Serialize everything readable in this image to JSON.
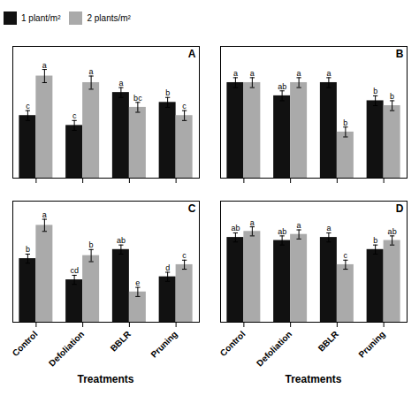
{
  "chart_data": [
    {
      "type": "bar",
      "title": "A",
      "categories": [
        "Control",
        "Defoliation",
        "BBLR",
        "Pruning"
      ],
      "series": [
        {
          "name": "1 plant/m²",
          "color": "#111111",
          "values": [
            0.38,
            0.32,
            0.52,
            0.46
          ],
          "errors": [
            0.03,
            0.03,
            0.03,
            0.03
          ],
          "annotations": [
            "c",
            "c",
            "a",
            "b"
          ]
        },
        {
          "name": "2 plants/m²",
          "color": "#aaaaaa",
          "values": [
            0.62,
            0.58,
            0.43,
            0.38
          ],
          "errors": [
            0.04,
            0.04,
            0.03,
            0.03
          ],
          "annotations": [
            "a",
            "a",
            "bc",
            "c"
          ]
        }
      ],
      "ylim": [
        0,
        0.8
      ],
      "yticks": [],
      "grid": false,
      "tick_labels": false,
      "legend": "upper left"
    },
    {
      "type": "bar",
      "title": "B",
      "categories": [
        "Control",
        "Defoliation",
        "BBLR",
        "Pruning"
      ],
      "series": [
        {
          "name": "1 plant/m²",
          "color": "#111111",
          "values": [
            0.58,
            0.5,
            0.58,
            0.47
          ],
          "errors": [
            0.03,
            0.03,
            0.03,
            0.03
          ],
          "annotations": [
            "a",
            "ab",
            "a",
            "b"
          ]
        },
        {
          "name": "2 plants/m²",
          "color": "#aaaaaa",
          "values": [
            0.58,
            0.58,
            0.28,
            0.44
          ],
          "errors": [
            0.03,
            0.03,
            0.03,
            0.03
          ],
          "annotations": [
            "a",
            "a",
            "b",
            "b"
          ]
        }
      ],
      "ylim": [
        0,
        0.8
      ],
      "yticks": [],
      "grid": false,
      "tick_labels": false
    },
    {
      "type": "bar",
      "title": "C",
      "xlabel": "Treatments",
      "categories": [
        "Control",
        "Defoliation",
        "BBLR",
        "Pruning"
      ],
      "series": [
        {
          "name": "1 plant/m²",
          "color": "#111111",
          "values": [
            0.42,
            0.28,
            0.48,
            0.3
          ],
          "errors": [
            0.03,
            0.03,
            0.03,
            0.03
          ],
          "annotations": [
            "b",
            "cd",
            "ab",
            "d"
          ]
        },
        {
          "name": "2 plants/m²",
          "color": "#aaaaaa",
          "values": [
            0.64,
            0.44,
            0.2,
            0.38
          ],
          "errors": [
            0.04,
            0.04,
            0.03,
            0.03
          ],
          "annotations": [
            "a",
            "b",
            "e",
            "c"
          ]
        }
      ],
      "ylim": [
        0,
        0.8
      ],
      "yticks": [],
      "grid": false,
      "tick_labels": "x"
    },
    {
      "type": "bar",
      "title": "D",
      "xlabel": "Treatments",
      "categories": [
        "Control",
        "Defoliation",
        "BBLR",
        "Pruning"
      ],
      "series": [
        {
          "name": "1 plant/m²",
          "color": "#111111",
          "values": [
            0.56,
            0.54,
            0.56,
            0.48
          ],
          "errors": [
            0.03,
            0.03,
            0.03,
            0.03
          ],
          "annotations": [
            "ab",
            "ab",
            "a",
            "b"
          ]
        },
        {
          "name": "2 plants/m²",
          "color": "#aaaaaa",
          "values": [
            0.6,
            0.58,
            0.38,
            0.54
          ],
          "errors": [
            0.03,
            0.03,
            0.03,
            0.03
          ],
          "annotations": [
            "a",
            "a",
            "c",
            "ab"
          ]
        }
      ],
      "ylim": [
        0,
        0.8
      ],
      "yticks": [],
      "grid": false,
      "tick_labels": "x"
    }
  ]
}
